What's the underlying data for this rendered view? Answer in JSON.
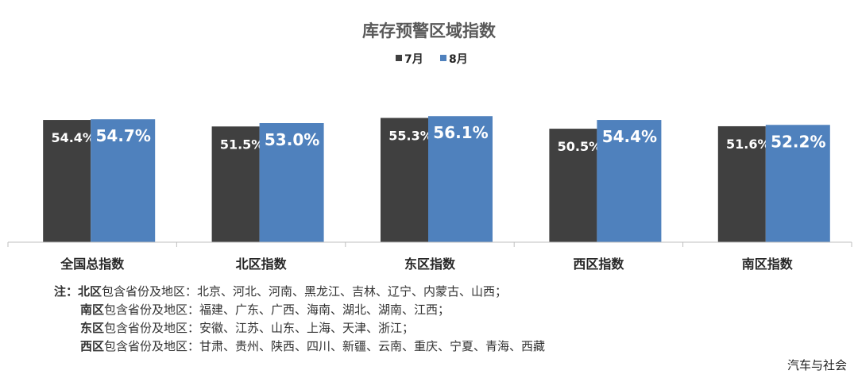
{
  "chart_data": {
    "type": "bar",
    "title": "库存预警区域指数",
    "categories": [
      "全国总指数",
      "北区指数",
      "东区指数",
      "西区指数",
      "南区指数"
    ],
    "series": [
      {
        "name": "7月",
        "color": "#404040",
        "values": [
          54.4,
          51.5,
          55.3,
          50.5,
          51.6
        ],
        "labels": [
          "54.4%",
          "51.5%",
          "55.3%",
          "50.5%",
          "51.6%"
        ]
      },
      {
        "name": "8月",
        "color": "#4f81bd",
        "values": [
          54.7,
          53.0,
          56.1,
          54.4,
          52.2
        ],
        "labels": [
          "54.7%",
          "53.0%",
          "56.1%",
          "54.4%",
          "52.2%"
        ]
      }
    ],
    "legend_position": "top-center",
    "value_unit": "%",
    "grid": false
  },
  "notes": {
    "prefix": "注：",
    "lines": [
      {
        "region": "北区",
        "text": "包含省份及地区：北京、河北、河南、黑龙江、吉林、辽宁、内蒙古、山西；"
      },
      {
        "region": "南区",
        "text": "包含省份及地区：福建、广东、广西、海南、湖北、湖南、江西；"
      },
      {
        "region": "东区",
        "text": "包含省份及地区：安徽、江苏、山东、上海、天津、浙江；"
      },
      {
        "region": "西区",
        "text": "包含省份及地区：甘肃、贵州、陕西、四川、新疆、云南、重庆、宁夏、青海、西藏"
      }
    ]
  },
  "watermark": "汽车与社会"
}
